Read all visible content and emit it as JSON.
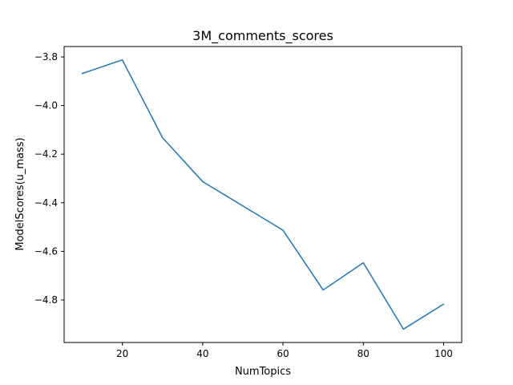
{
  "chart_data": {
    "type": "line",
    "title": "3M_comments_scores",
    "xlabel": "NumTopics",
    "ylabel": "ModelScores(u_mass)",
    "xlim": [
      5.5,
      104.5
    ],
    "ylim": [
      -4.975,
      -3.757
    ],
    "xticks": [
      {
        "value": 20,
        "label": "20"
      },
      {
        "value": 40,
        "label": "40"
      },
      {
        "value": 60,
        "label": "60"
      },
      {
        "value": 80,
        "label": "80"
      },
      {
        "value": 100,
        "label": "100"
      }
    ],
    "yticks": [
      {
        "value": -3.8,
        "label": "−3.8"
      },
      {
        "value": -4.0,
        "label": "−4.0"
      },
      {
        "value": -4.2,
        "label": "−4.2"
      },
      {
        "value": -4.4,
        "label": "−4.4"
      },
      {
        "value": -4.6,
        "label": "−4.6"
      },
      {
        "value": -4.8,
        "label": "−4.8"
      }
    ],
    "grid": false,
    "series": [
      {
        "color": "#1f77b4",
        "x": [
          10,
          20,
          30,
          40,
          50,
          60,
          70,
          80,
          90,
          100
        ],
        "y": [
          -3.868,
          -3.812,
          -4.132,
          -4.313,
          -4.413,
          -4.513,
          -4.759,
          -4.647,
          -4.92,
          -4.817
        ]
      }
    ]
  }
}
